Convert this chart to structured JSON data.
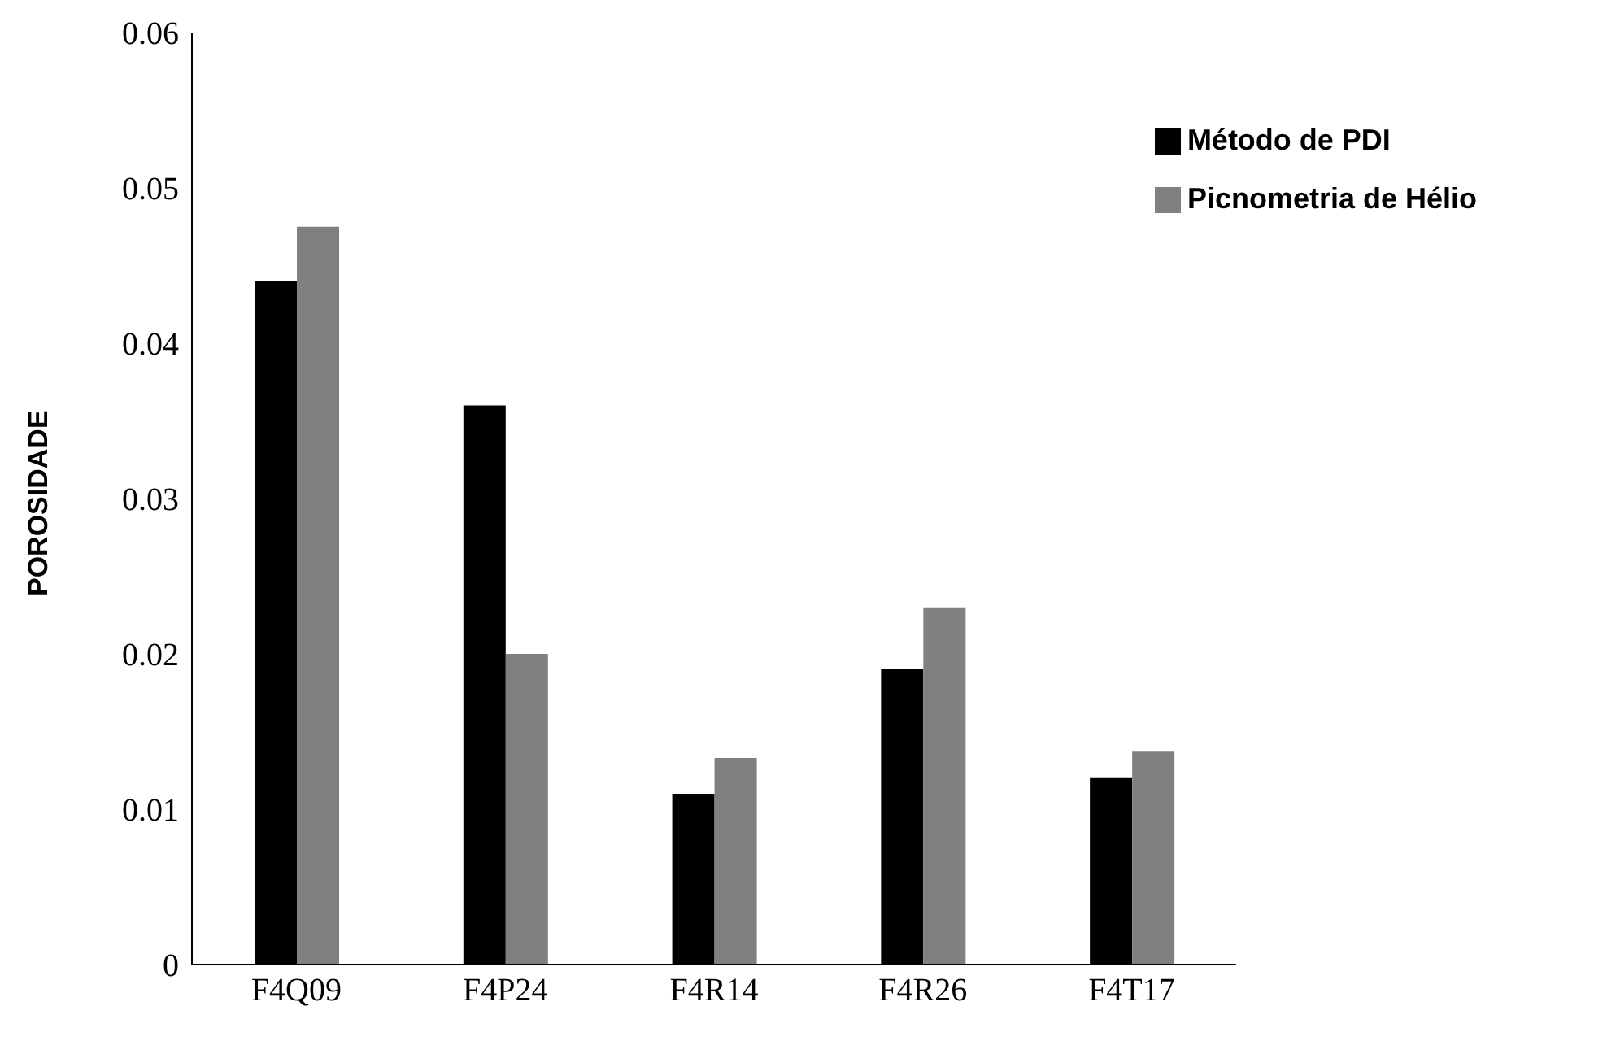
{
  "chart_data": {
    "type": "bar",
    "ylabel": "POROSIDADE",
    "categories": [
      "F4Q09",
      "F4P24",
      "F4R14",
      "F4R26",
      "F4T17"
    ],
    "series": [
      {
        "name": "Método de PDI",
        "color": "#000000",
        "values": [
          0.044,
          0.036,
          0.011,
          0.019,
          0.012
        ]
      },
      {
        "name": "Picnometria de Hélio",
        "color": "#808080",
        "values": [
          0.0475,
          0.02,
          0.0133,
          0.023,
          0.0137
        ]
      }
    ],
    "ylim": [
      0,
      0.06
    ],
    "yticks": [
      0,
      0.01,
      0.02,
      0.03,
      0.04,
      0.05,
      0.06
    ],
    "grid": false,
    "legend": "top right"
  }
}
